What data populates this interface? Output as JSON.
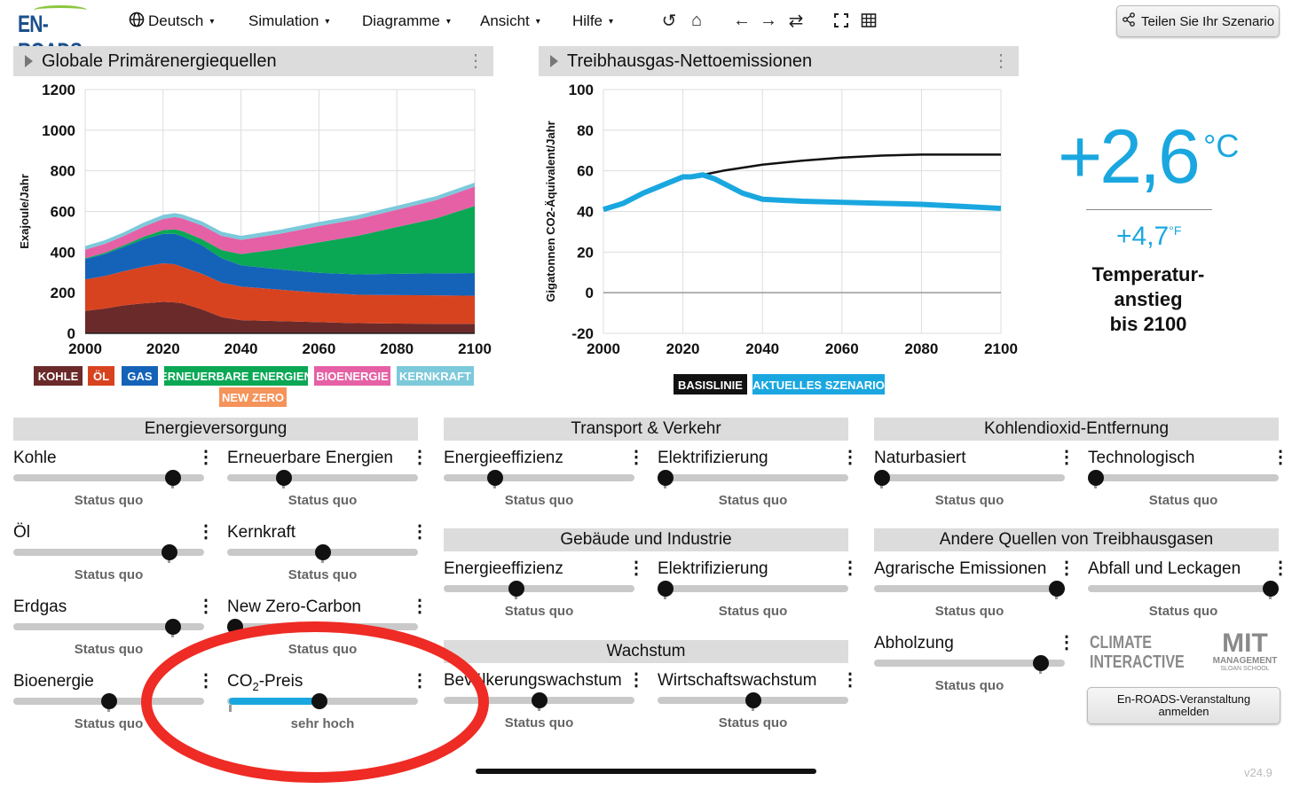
{
  "app": {
    "logo": "EN-ROADS",
    "version": "v24.9"
  },
  "menu": [
    {
      "label": "Deutsch"
    },
    {
      "label": "Simulation"
    },
    {
      "label": "Diagramme"
    },
    {
      "label": "Ansicht"
    },
    {
      "label": "Hilfe"
    }
  ],
  "share_label": "Teilen Sie Ihr Szenario",
  "left_panel": {
    "title": "Globale Primärenergiequellen"
  },
  "right_panel": {
    "title": "Treibhausgas-Nettoemissionen"
  },
  "temperature": {
    "celsius": "+2,6",
    "unit_c": "°C",
    "fahrenheit": "+4,7",
    "unit_f": "°F",
    "label_lines": [
      "Temperatur-",
      "anstieg",
      "bis 2100"
    ]
  },
  "chart_data": [
    {
      "type": "area",
      "stacked": true,
      "ylabel": "Exajoule/Jahr",
      "xlim": [
        2000,
        2100
      ],
      "ylim": [
        0,
        1200
      ],
      "x_ticks": [
        2000,
        2020,
        2040,
        2060,
        2080,
        2100
      ],
      "y_ticks": [
        0,
        200,
        400,
        600,
        800,
        1000,
        1200
      ],
      "x": [
        2000,
        2005,
        2010,
        2015,
        2020,
        2023,
        2025,
        2030,
        2035,
        2040,
        2050,
        2060,
        2070,
        2080,
        2090,
        2100
      ],
      "series": [
        {
          "name": "KOHLE",
          "color": "#6b2a2a",
          "values": [
            110,
            122,
            138,
            148,
            155,
            152,
            148,
            118,
            80,
            65,
            60,
            55,
            50,
            48,
            47,
            47
          ]
        },
        {
          "name": "ÖL",
          "color": "#d8431f",
          "values": [
            155,
            160,
            168,
            180,
            190,
            188,
            178,
            175,
            170,
            165,
            155,
            145,
            140,
            140,
            140,
            138
          ]
        },
        {
          "name": "GAS",
          "color": "#1563b8",
          "values": [
            100,
            108,
            120,
            135,
            145,
            150,
            152,
            140,
            120,
            105,
            100,
            98,
            100,
            105,
            108,
            112
          ]
        },
        {
          "name": "ERNEUERBARE ENERGIEN",
          "color": "#0aa855",
          "values": [
            5,
            6,
            8,
            12,
            18,
            22,
            25,
            30,
            40,
            55,
            100,
            150,
            190,
            230,
            270,
            330
          ]
        },
        {
          "name": "BIOENERGIE",
          "color": "#e560a5",
          "values": [
            42,
            44,
            46,
            50,
            55,
            60,
            62,
            68,
            70,
            70,
            75,
            80,
            82,
            85,
            90,
            95
          ]
        },
        {
          "name": "KERNKRAFT",
          "color": "#7cc9da",
          "values": [
            18,
            18,
            18,
            20,
            20,
            20,
            20,
            20,
            20,
            20,
            20,
            20,
            20,
            20,
            20,
            20
          ]
        },
        {
          "name": "NEW ZERO",
          "color": "#f5935a",
          "values": [
            0,
            0,
            0,
            0,
            0,
            0,
            0,
            0,
            0,
            0,
            0,
            0,
            0,
            0,
            0,
            0
          ]
        }
      ]
    },
    {
      "type": "line",
      "ylabel": "Gigatonnen CO2-Äquivalent/Jahr",
      "xlim": [
        2000,
        2100
      ],
      "ylim": [
        -20,
        100
      ],
      "x_ticks": [
        2000,
        2020,
        2040,
        2060,
        2080,
        2100
      ],
      "y_ticks": [
        -20,
        0,
        20,
        40,
        60,
        80,
        100
      ],
      "series": [
        {
          "name": "BASISLINIE",
          "color": "#111111",
          "x": [
            2000,
            2005,
            2010,
            2015,
            2020,
            2022,
            2025,
            2030,
            2040,
            2050,
            2060,
            2070,
            2080,
            2090,
            2100
          ],
          "values": [
            41,
            44,
            49,
            53,
            57,
            57,
            58,
            60,
            63,
            65,
            66.5,
            67.5,
            68,
            68,
            68
          ]
        },
        {
          "name": "AKTUELLES SZENARIO",
          "color": "#1aa7e0",
          "x": [
            2000,
            2005,
            2010,
            2015,
            2020,
            2022,
            2025,
            2028,
            2031,
            2035,
            2040,
            2050,
            2060,
            2070,
            2080,
            2090,
            2100
          ],
          "values": [
            41,
            44,
            49,
            53,
            57,
            57,
            58,
            56,
            53,
            49,
            46,
            45,
            44.5,
            44,
            43.5,
            42.5,
            41.5
          ]
        }
      ]
    }
  ],
  "sections": {
    "energy": "Energieversorgung",
    "transport": "Transport & Verkehr",
    "cdr": "Kohlendioxid-Entfernung",
    "buildings": "Gebäude und Industrie",
    "other_ghg": "Andere Quellen von Treibhausgasen",
    "growth": "Wachstum"
  },
  "sliders": {
    "kohle": {
      "label": "Kohle",
      "status": "Status quo",
      "level": 0.87
    },
    "erneuerbare": {
      "label": "Erneuerbare Energien",
      "status": "Status quo",
      "level": 0.28
    },
    "oel": {
      "label": "Öl",
      "status": "Status quo",
      "level": 0.85
    },
    "kernkraft": {
      "label": "Kernkraft",
      "status": "Status quo",
      "level": 0.5
    },
    "erdgas": {
      "label": "Erdgas",
      "status": "Status quo",
      "level": 0.87
    },
    "newzero": {
      "label": "New Zero-Carbon",
      "status": "Status quo",
      "level": 0.0
    },
    "bioenergie": {
      "label": "Bioenergie",
      "status": "Status quo",
      "level": 0.5
    },
    "co2preis": {
      "label_main": "CO",
      "label_sub": "2",
      "label_rest": "-Preis",
      "status": "sehr hoch",
      "level": 0.48
    },
    "tr_eff": {
      "label": "Energieeffizienz",
      "status": "Status quo",
      "level": 0.25
    },
    "tr_elec": {
      "label": "Elektrifizierung",
      "status": "Status quo",
      "level": 0.0
    },
    "natur": {
      "label": "Naturbasiert",
      "status": "Status quo",
      "level": 0.0
    },
    "techno": {
      "label": "Technologisch",
      "status": "Status quo",
      "level": 0.0
    },
    "bi_eff": {
      "label": "Energieeffizienz",
      "status": "Status quo",
      "level": 0.37
    },
    "bi_elec": {
      "label": "Elektrifizierung",
      "status": "Status quo",
      "level": 0.0
    },
    "agrar": {
      "label": "Agrarische Emissionen",
      "status": "Status quo",
      "level": 1.0
    },
    "abfall": {
      "label": "Abfall und Leckagen",
      "status": "Status quo",
      "level": 1.0
    },
    "abholzung": {
      "label": "Abholzung",
      "status": "Status quo",
      "level": 0.91
    },
    "bevoelkerung": {
      "label": "Bevölkerungswachstum",
      "status": "Status quo",
      "level": 0.5
    },
    "wirtschaft": {
      "label": "Wirtschaftswachstum",
      "status": "Status quo",
      "level": 0.5
    }
  },
  "partners": {
    "ci": "CLIMATE INTERACTIVE",
    "mit": "MIT",
    "mit_sub": "MANAGEMENT",
    "mit_sub2": "SLOAN SCHOOL"
  },
  "event_button": "En-ROADS-Veranstaltung anmelden"
}
